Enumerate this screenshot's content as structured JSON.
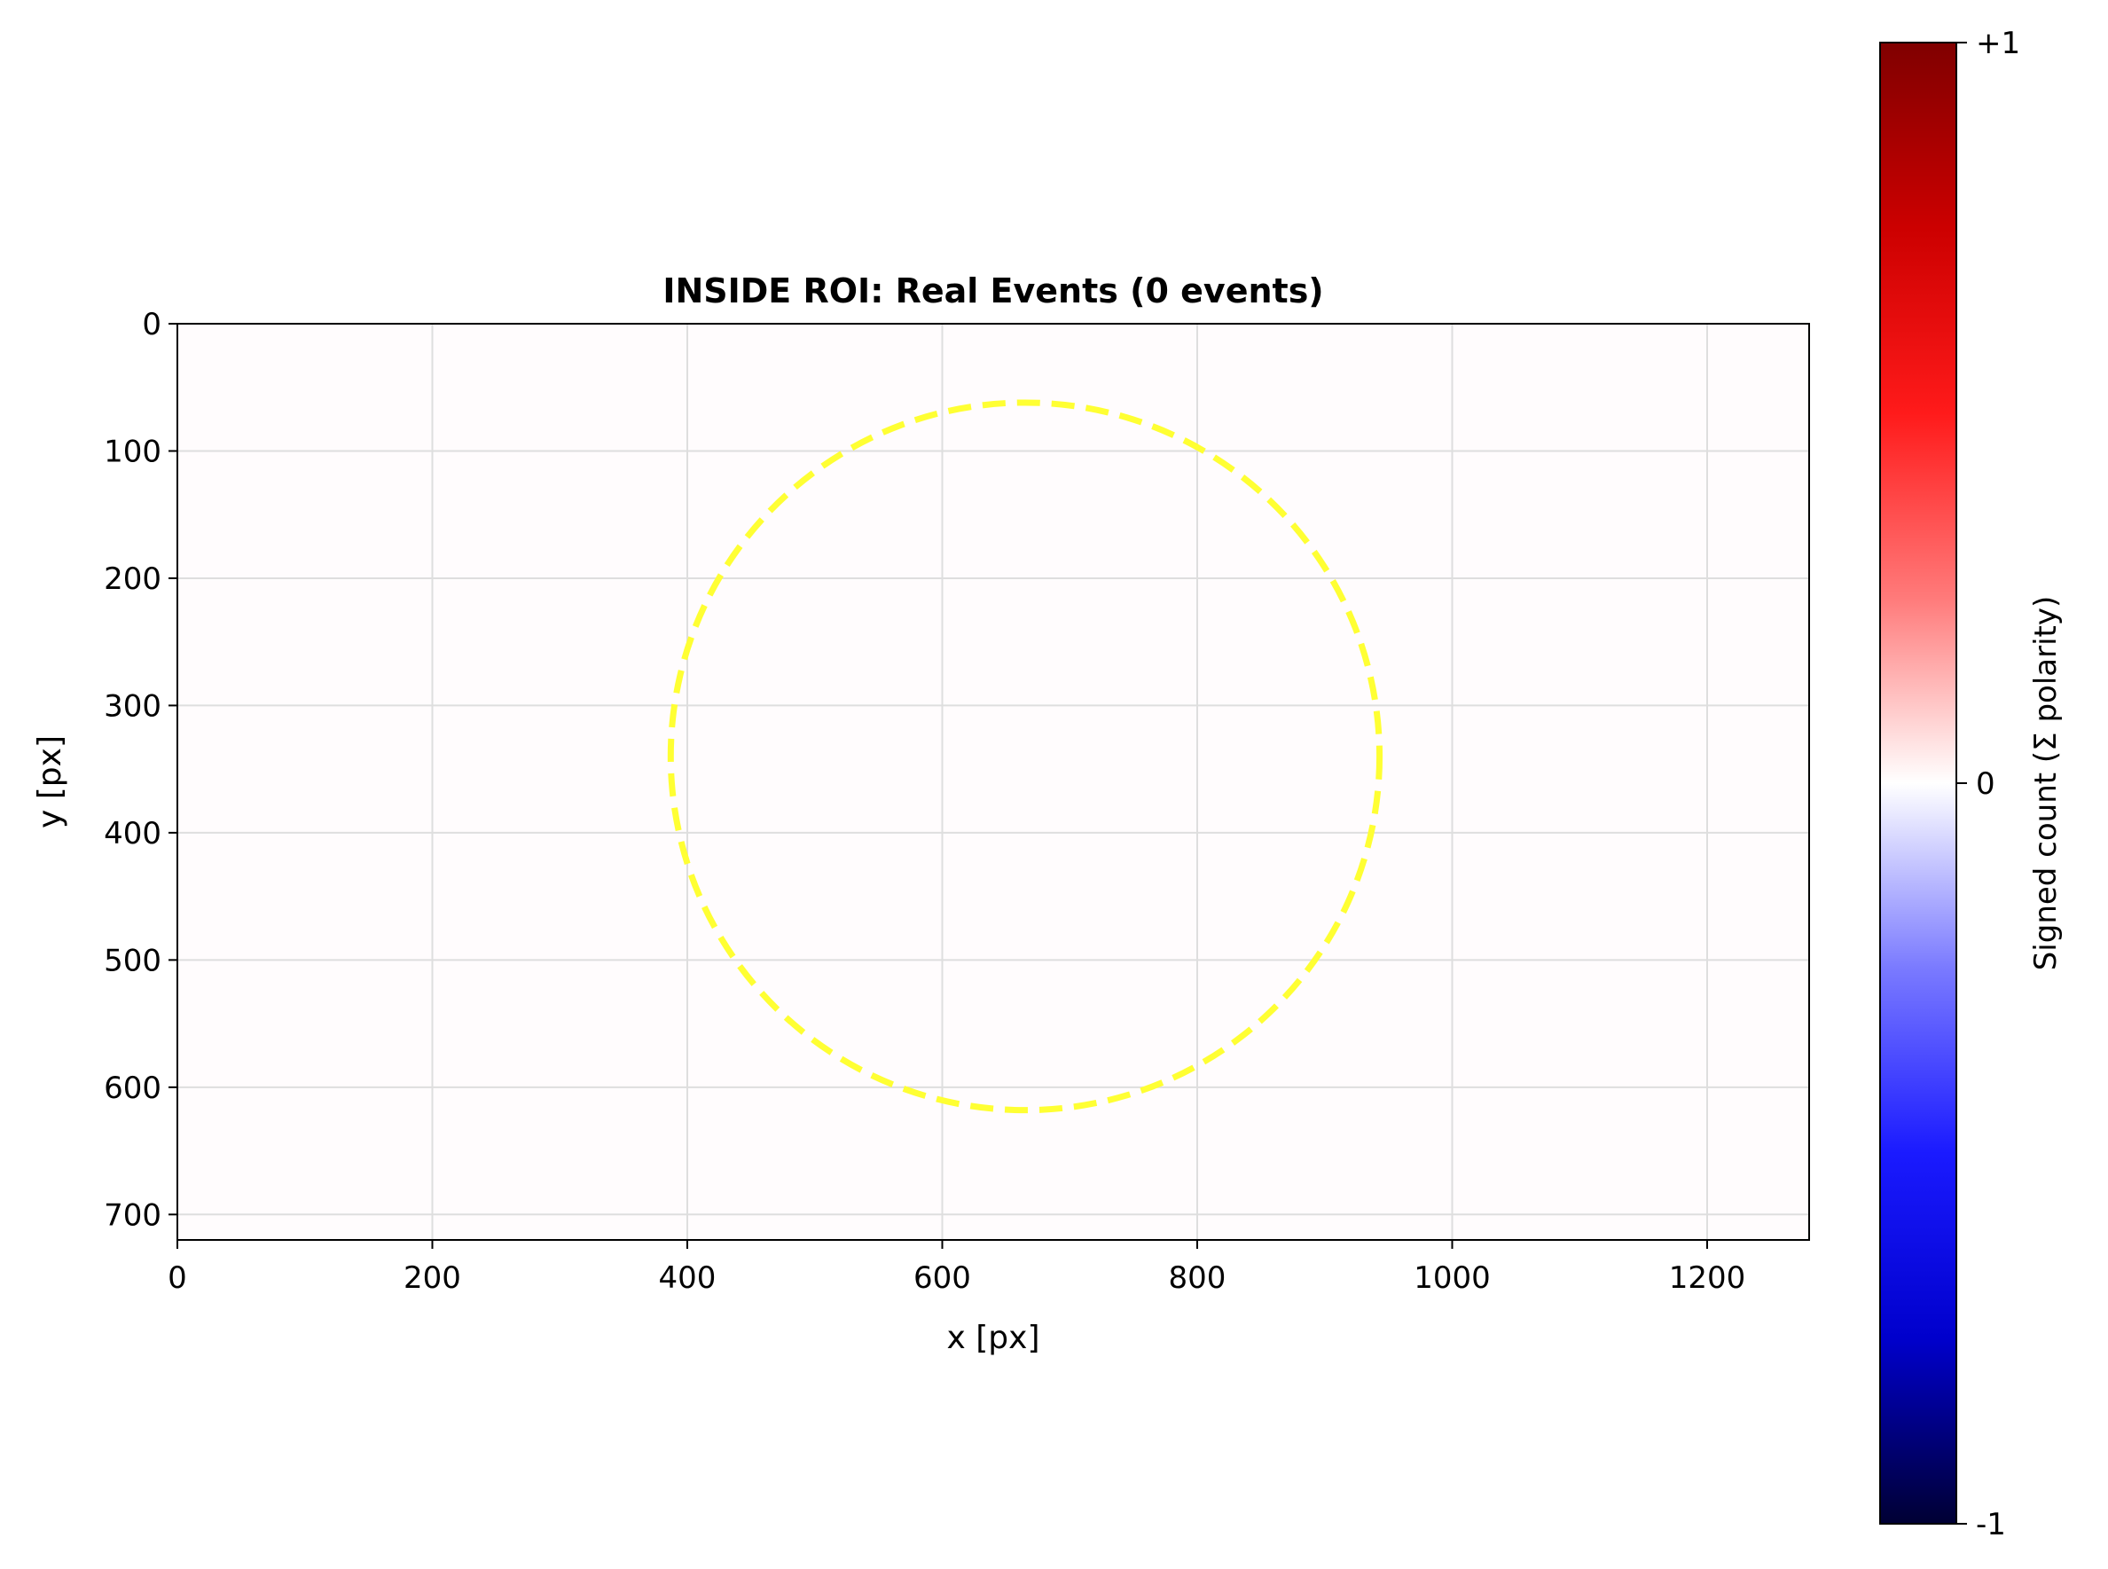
{
  "chart_data": {
    "type": "heatmap",
    "title": "INSIDE ROI: Real Events (0 events)",
    "xlabel": "x [px]",
    "ylabel": "y [px]",
    "xlim": [
      0,
      1280
    ],
    "ylim": [
      720,
      0
    ],
    "x_ticks": [
      0,
      200,
      400,
      600,
      800,
      1000,
      1200
    ],
    "y_ticks": [
      0,
      100,
      200,
      300,
      400,
      500,
      600,
      700
    ],
    "x_tick_labels": [
      "0",
      "200",
      "400",
      "600",
      "800",
      "1000",
      "1200"
    ],
    "y_tick_labels": [
      "0",
      "100",
      "200",
      "300",
      "400",
      "500",
      "600",
      "700"
    ],
    "grid": true,
    "event_count": 0,
    "values": [],
    "roi_circle": {
      "cx": 665,
      "cy": 340,
      "r": 278,
      "color": "#ffff33",
      "style": "dashed"
    },
    "colorbar": {
      "label": "Signed count (Σ polarity)",
      "range": [
        -1,
        1
      ],
      "ticks": [
        1,
        0,
        -1
      ],
      "tick_labels": [
        "+1",
        "0",
        "-1"
      ],
      "colormap": "seismic",
      "stops": [
        "#000033",
        "#0000cc",
        "#1a1aff",
        "#7a7aff",
        "#ffffff",
        "#ff7a7a",
        "#ff1a1a",
        "#cc0000",
        "#800000"
      ]
    },
    "background_color": "#fffcfd"
  }
}
